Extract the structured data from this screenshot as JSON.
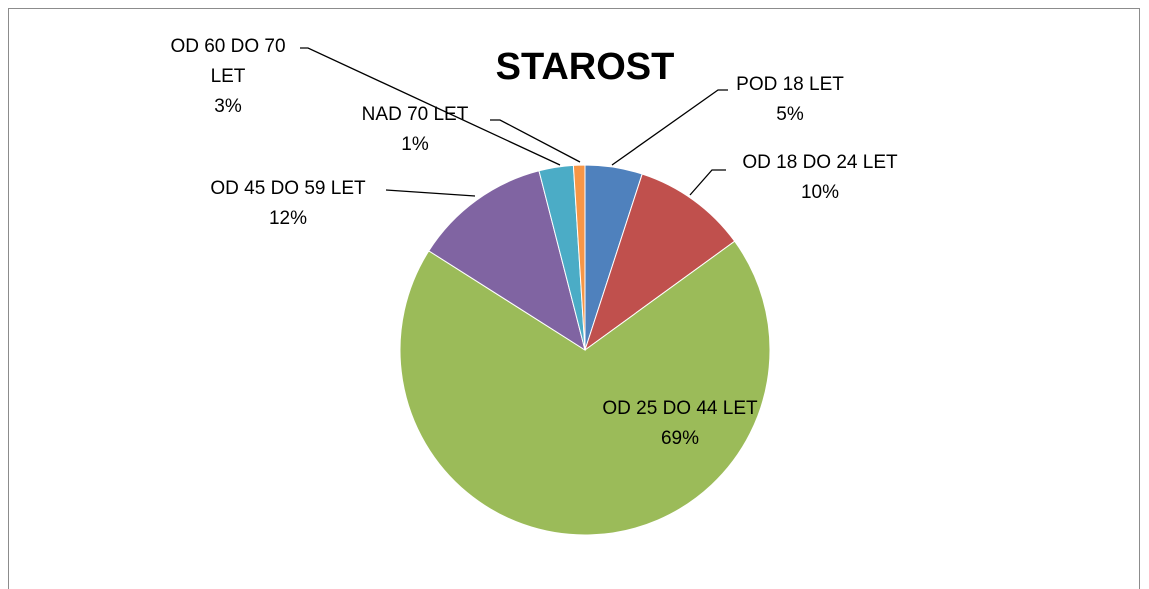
{
  "chart_data": {
    "type": "pie",
    "title": "STAROST",
    "categories": [
      "POD 18 LET",
      "OD 18 DO 24 LET",
      "OD 25 DO 44 LET",
      "OD 45 DO 59 LET",
      "OD 60 DO 70 LET",
      "NAD 70 LET"
    ],
    "values": [
      5,
      10,
      69,
      12,
      3,
      1
    ],
    "value_labels": [
      "5%",
      "10%",
      "69%",
      "12%",
      "3%",
      "1%"
    ],
    "colors": [
      "#4f81bd",
      "#c0504d",
      "#9bbb59",
      "#8064a2",
      "#4bacc6",
      "#f79646"
    ]
  }
}
